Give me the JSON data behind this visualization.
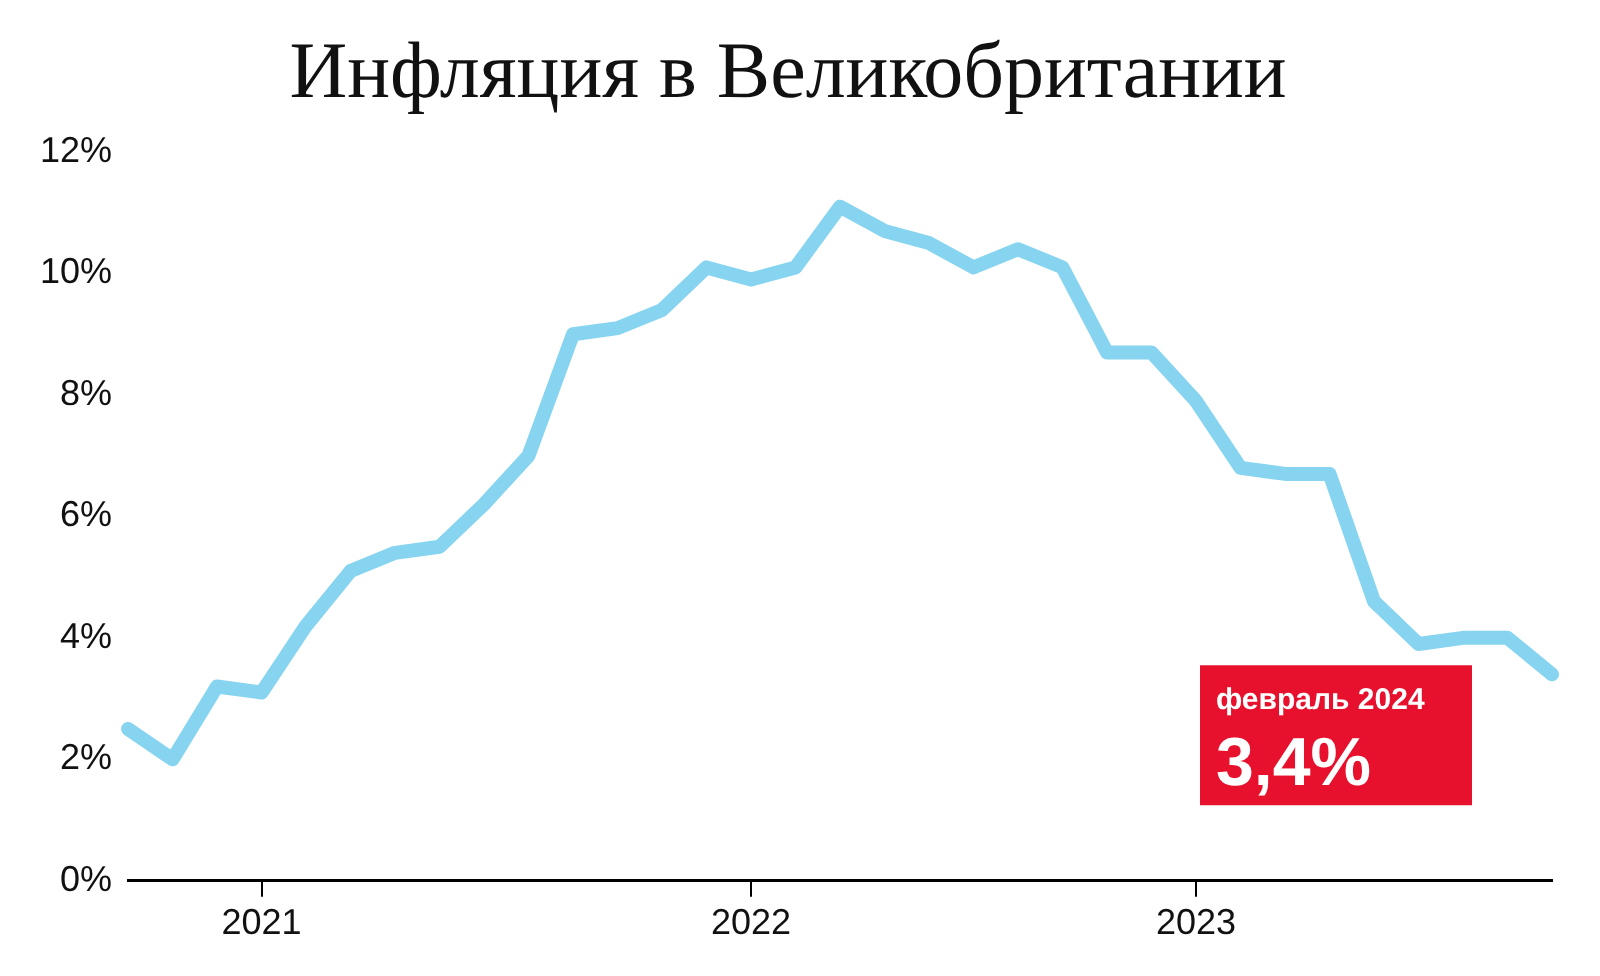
{
  "chart_data": {
    "type": "line",
    "title": "Инфляция в Великобритании",
    "categories": [
      null,
      null,
      null,
      "2021",
      null,
      null,
      null,
      null,
      null,
      null,
      null,
      null,
      null,
      null,
      "2022",
      null,
      null,
      null,
      null,
      null,
      null,
      null,
      null,
      null,
      "2023",
      null,
      null,
      null,
      null,
      null,
      null,
      null,
      null
    ],
    "series": [
      {
        "color": "#87d4f0",
        "values": [
          2.5,
          2.0,
          3.2,
          3.1,
          4.2,
          5.1,
          5.4,
          5.5,
          6.2,
          7.0,
          9.0,
          9.1,
          9.4,
          10.1,
          9.9,
          10.1,
          11.1,
          10.7,
          10.5,
          10.1,
          10.4,
          10.1,
          8.7,
          8.7,
          7.9,
          6.8,
          6.7,
          6.7,
          4.6,
          3.9,
          4.0,
          4.0,
          3.4
        ]
      }
    ],
    "ylim": [
      0,
      12
    ],
    "yticks": [
      {
        "value": 0,
        "label": "0%"
      },
      {
        "value": 2,
        "label": "2%"
      },
      {
        "value": 4,
        "label": "4%"
      },
      {
        "value": 6,
        "label": "6%"
      },
      {
        "value": 8,
        "label": "8%"
      },
      {
        "value": 10,
        "label": "10%"
      },
      {
        "value": 12,
        "label": "12%"
      }
    ],
    "grid": false,
    "legend": false,
    "marker": "none",
    "line_style": "solid",
    "annotations": [
      "февраль 2024",
      "3,4%"
    ]
  }
}
